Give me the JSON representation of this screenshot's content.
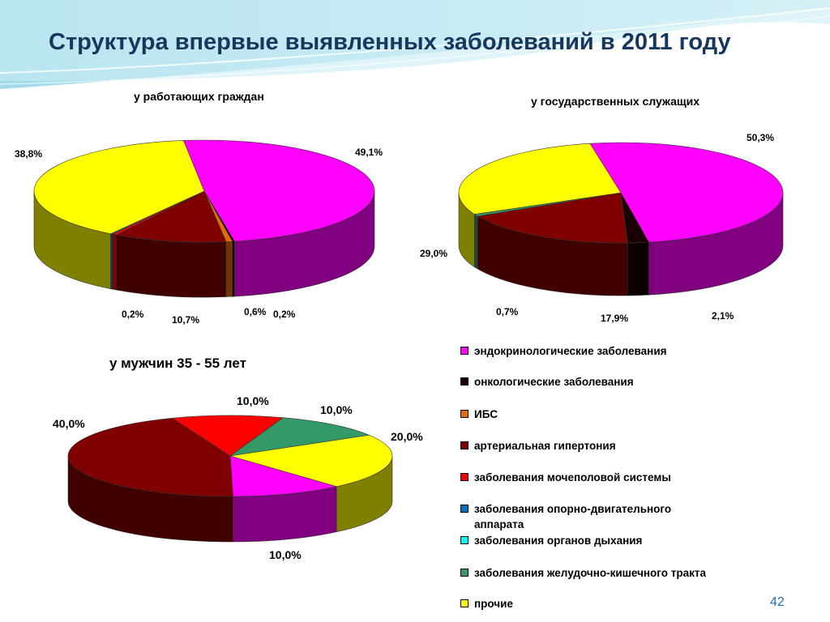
{
  "slide": {
    "title": "Структура впервые выявленных заболеваний в 2011 году",
    "page_number": "42"
  },
  "categories": [
    {
      "label": "эндокринологические заболевания",
      "color": "#ff00ff"
    },
    {
      "label": "онкологические заболевания",
      "color": "#1a0000"
    },
    {
      "label": "ИБС",
      "color": "#e46c0a"
    },
    {
      "label": "артериальная гипертония",
      "color": "#800000"
    },
    {
      "label": "заболевания мочеполовой системы",
      "color": "#ff0000"
    },
    {
      "label": "заболевания опорно-двигательного аппарата",
      "color": "#0070c0"
    },
    {
      "label": "заболевания органов дыхания",
      "color": "#00ffff"
    },
    {
      "label": "заболевания желудочно-кишечного тракта",
      "color": "#339966"
    },
    {
      "label": "прочие",
      "color": "#ffff00"
    }
  ],
  "chart_data": [
    {
      "type": "pie",
      "title": "у работающих граждан",
      "categories": [
        "эндокринологические заболевания",
        "онкологические заболевания",
        "ИБС",
        "артериальная гипертония",
        "заболевания мочеполовой системы",
        "заболевания опорно-двигательного аппарата",
        "прочие"
      ],
      "values": [
        49.1,
        0.2,
        0.6,
        10.7,
        0.4,
        0.2,
        38.8
      ],
      "labels": [
        "49,1%",
        "0,2%",
        "0,6%",
        "10,7%",
        "",
        "0,2%",
        "38,8%"
      ]
    },
    {
      "type": "pie",
      "title": "у государственных служащих",
      "categories": [
        "эндокринологические заболевания",
        "онкологические заболевания",
        "артериальная гипертония",
        "заболевания мочеполовой системы",
        "заболевания желудочно-кишечного тракта",
        "прочие"
      ],
      "values": [
        50.3,
        2.1,
        17.9,
        0.0,
        0.7,
        29.0
      ],
      "labels": [
        "50,3%",
        "2,1%",
        "17,9%",
        "",
        "0,7%",
        "29,0%"
      ]
    },
    {
      "type": "pie",
      "title": "у мужчин 35 - 55 лет",
      "categories": [
        "заболевания мочеполовой системы",
        "заболевания желудочно-кишечного тракта",
        "прочие",
        "эндокринологические заболевания",
        "артериальная гипертония"
      ],
      "values": [
        10.0,
        10.0,
        20.0,
        10.0,
        40.0
      ],
      "labels": [
        "10,0%",
        "10,0%",
        "20,0%",
        "10,0%",
        "40,0%"
      ]
    }
  ]
}
